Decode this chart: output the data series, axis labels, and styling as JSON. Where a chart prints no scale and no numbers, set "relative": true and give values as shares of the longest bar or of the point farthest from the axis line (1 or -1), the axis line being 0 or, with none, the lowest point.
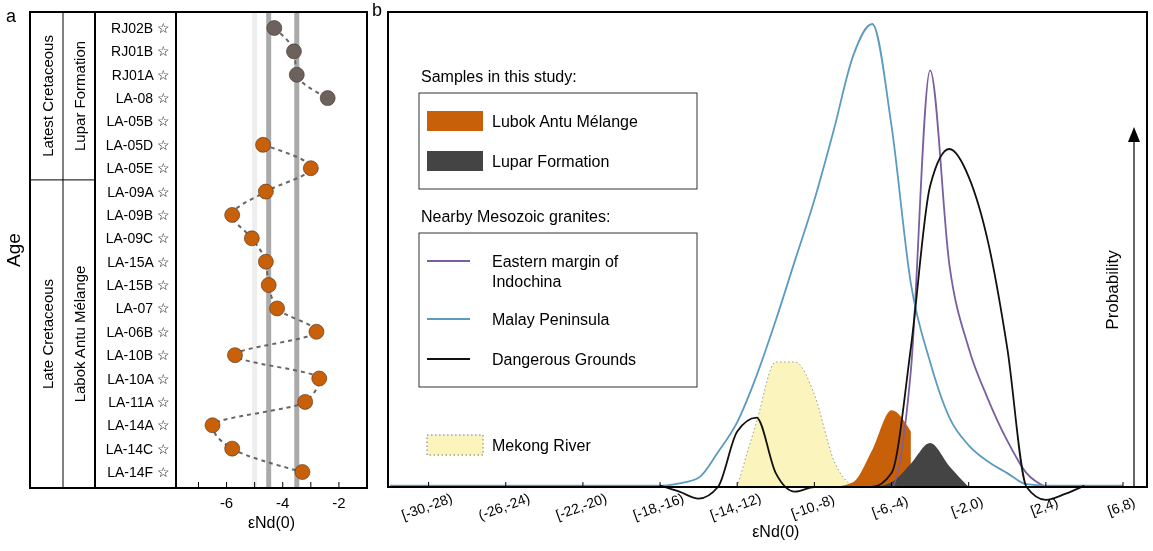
{
  "chart_data": [
    {
      "type": "scatter",
      "title": "a",
      "xlabel": "εNd(0)",
      "ylabel": "Age",
      "orientation": "horizontal",
      "categories": [
        "RJ02B ☆",
        "RJ01B ☆",
        "RJ01A ☆",
        "LA-08 ☆",
        "LA-05B ☆",
        "LA-05D ☆",
        "LA-05E ☆",
        "LA-09A ☆",
        "LA-09B ☆",
        "LA-09C ☆",
        "LA-15A ☆",
        "LA-15B ☆",
        "LA-07 ☆",
        "LA-06B ☆",
        "LA-10B ☆",
        "LA-10A ☆",
        "LA-11A ☆",
        "LA-14A ☆",
        "LA-14C ☆",
        "LA-14F ☆"
      ],
      "series": [
        {
          "type": "line",
          "color": "#666666",
          "line_style": "dashed",
          "marker": "none",
          "values": [
            -4.3,
            -3.6,
            -3.5,
            -2.4,
            null,
            -4.7,
            -3.0,
            -4.6,
            -5.8,
            -5.1,
            -4.6,
            -4.5,
            -4.2,
            -2.8,
            -5.7,
            -2.7,
            -3.2,
            -6.5,
            -5.8,
            -3.3
          ]
        },
        {
          "type": "scatter",
          "color": "#6b625d",
          "marker": "circle",
          "values": [
            -4.3,
            -3.6,
            -3.5,
            -2.4,
            null,
            null,
            null,
            null,
            null,
            null,
            null,
            null,
            null,
            null,
            null,
            null,
            null,
            null,
            null,
            null
          ]
        },
        {
          "type": "scatter",
          "color": "#c8600a",
          "marker": "circle",
          "values": [
            null,
            null,
            null,
            null,
            null,
            -4.7,
            -3.0,
            -4.6,
            -5.8,
            -5.1,
            -4.6,
            -4.5,
            -4.2,
            -2.8,
            -5.7,
            -2.7,
            -3.2,
            -6.5,
            -5.8,
            -3.3
          ]
        }
      ],
      "xlim": [
        -7.8,
        -1
      ],
      "xticks": [
        {
          "value": -7,
          "label": null
        },
        -6,
        {
          "value": -5,
          "label": null
        },
        -4,
        {
          "value": -3,
          "label": null
        },
        -2
      ],
      "ref_lines": [
        {
          "axis": "x",
          "value": -5,
          "color": "#eeeeee"
        },
        {
          "axis": "x",
          "value": -4.5,
          "color": "#aaaaaa"
        },
        {
          "axis": "x",
          "value": -3.5,
          "color": "#aaaaaa"
        }
      ],
      "annotations": [
        "Latest Cretaceous",
        "Late Cretaceous",
        "Lupar Formation",
        "Labok Antu Mélange"
      ],
      "legend": false,
      "grid": false
    },
    {
      "type": "line",
      "title": "b",
      "xlabel": "εNd(0)",
      "ylabel": "Probability",
      "relative": true,
      "legend": "left",
      "categories": [
        null,
        null,
        "[-30,-28)",
        null,
        null,
        null,
        "(-26,-24)",
        null,
        null,
        null,
        "[-22,-20)",
        null,
        null,
        null,
        "[-18,-16)",
        null,
        null,
        null,
        "[-14,-12)",
        null,
        null,
        null,
        "[-10,-8)",
        null,
        null,
        null,
        "[-6,-4)",
        null,
        null,
        null,
        "[-2,0)",
        null,
        null,
        null,
        "[2,4)",
        null,
        null,
        null,
        "[6,8)"
      ],
      "annotations": [
        "Samples in this study:",
        "Nearby Mesozoic granites:"
      ],
      "series": [
        {
          "name": "Lubok Antu Mélange",
          "type": "area",
          "color": "#c8600a",
          "values": [
            null,
            null,
            null,
            null,
            null,
            null,
            null,
            null,
            null,
            null,
            null,
            null,
            null,
            null,
            null,
            null,
            null,
            null,
            null,
            null,
            null,
            null,
            null,
            0,
            0.01,
            0.08,
            0.166,
            0.12,
            null,
            null,
            null,
            null,
            null,
            null,
            null,
            null,
            null,
            null,
            null
          ]
        },
        {
          "name": "Lupar Formation",
          "type": "area",
          "color": "#444444",
          "values": [
            null,
            null,
            null,
            null,
            null,
            null,
            null,
            null,
            null,
            null,
            null,
            null,
            null,
            null,
            null,
            null,
            null,
            null,
            null,
            null,
            null,
            null,
            null,
            null,
            null,
            0,
            0.01,
            0.05,
            0.095,
            0.045,
            0,
            null,
            null,
            null,
            null,
            null,
            null,
            null,
            null
          ]
        },
        {
          "name": "Eastern margin of Indochina",
          "type": "line",
          "color": "#7a5fa0",
          "values": [
            null,
            null,
            null,
            null,
            null,
            null,
            null,
            null,
            null,
            null,
            null,
            null,
            null,
            null,
            null,
            null,
            null,
            null,
            null,
            null,
            null,
            null,
            null,
            null,
            null,
            0.003,
            0,
            0.25,
            0.9,
            0.48,
            0.3,
            0.19,
            0.1,
            0.03,
            0,
            null,
            null,
            null,
            null
          ]
        },
        {
          "name": "Malay Peninsula",
          "type": "line",
          "color": "#5b9bbf",
          "values": [
            0.003,
            0.003,
            0.003,
            0.003,
            0.003,
            0.003,
            0.003,
            0.003,
            0.003,
            0.003,
            0.003,
            0.003,
            0.003,
            0.003,
            0.003,
            0.008,
            0.02,
            0.075,
            0.14,
            0.24,
            0.36,
            0.49,
            0.62,
            0.77,
            0.93,
            1,
            0.78,
            0.44,
            0.27,
            0.15,
            0.09,
            0.055,
            0.03,
            0.006,
            0.003,
            0.003,
            0.003,
            0.003,
            0.003
          ]
        },
        {
          "name": "Dangerous Grounds",
          "type": "line",
          "color": "#111111",
          "values": [
            null,
            null,
            null,
            null,
            null,
            null,
            null,
            null,
            null,
            null,
            null,
            null,
            null,
            null,
            0.003,
            -0.01,
            -0.025,
            0,
            0.12,
            0.15,
            0.03,
            -0.01,
            0,
            0,
            0,
            0,
            0.03,
            0.3,
            0.65,
            0.73,
            0.67,
            0.53,
            0.3,
            0,
            -0.028,
            -0.015,
            0.003,
            null,
            null
          ]
        },
        {
          "name": "Mekong River",
          "type": "area",
          "color": "#fbf5bd",
          "line_style": "dotted",
          "values": [
            null,
            null,
            null,
            null,
            null,
            null,
            null,
            null,
            null,
            null,
            null,
            null,
            null,
            null,
            null,
            null,
            null,
            null,
            0,
            0.14,
            0.27,
            0.27,
            0.2,
            0.058,
            0,
            null,
            null,
            null,
            null,
            null,
            null,
            null,
            null,
            null,
            null,
            null,
            null,
            null,
            null
          ]
        }
      ]
    }
  ]
}
